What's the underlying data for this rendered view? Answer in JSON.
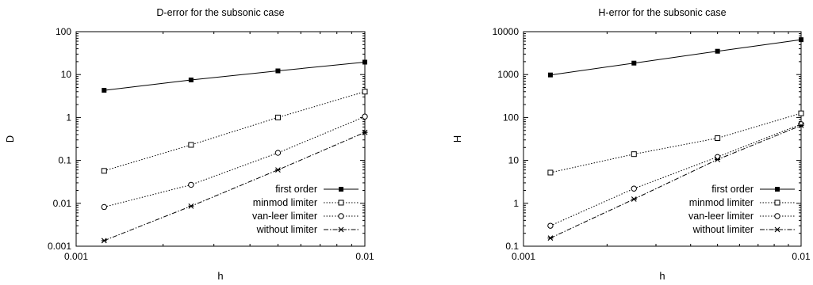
{
  "chart_data": [
    {
      "type": "line",
      "title": "D-error for the subsonic case",
      "xlabel": "h",
      "ylabel": "D",
      "xscale": "log",
      "yscale": "log",
      "xlim": [
        0.001,
        0.01
      ],
      "ylim": [
        0.001,
        100
      ],
      "xticks": [
        "0.001",
        "0.01"
      ],
      "yticks": [
        "0.001",
        "0.01",
        "0.1",
        "1",
        "10",
        "100"
      ],
      "grid": false,
      "legend": "bottom-right",
      "x": [
        0.00125,
        0.0025,
        0.005,
        0.01
      ],
      "series": [
        {
          "name": "first order",
          "marker": "filled-square",
          "dash": "solid",
          "values": [
            4.3,
            7.5,
            12.2,
            19.5
          ]
        },
        {
          "name": "minmod limiter",
          "marker": "open-square",
          "dash": "dotted",
          "values": [
            0.057,
            0.23,
            1.0,
            4.0
          ]
        },
        {
          "name": "van-leer limiter",
          "marker": "open-circle",
          "dash": "dotted",
          "values": [
            0.0082,
            0.027,
            0.15,
            1.05
          ]
        },
        {
          "name": "without limiter",
          "marker": "star",
          "dash": "dash-dot",
          "values": [
            0.00135,
            0.0086,
            0.06,
            0.45
          ]
        }
      ]
    },
    {
      "type": "line",
      "title": "H-error for the subsonic case",
      "xlabel": "h",
      "ylabel": "H",
      "xscale": "log",
      "yscale": "log",
      "xlim": [
        0.001,
        0.01
      ],
      "ylim": [
        0.1,
        10000
      ],
      "xticks": [
        "0.001",
        "0.01"
      ],
      "yticks": [
        "0.1",
        "1",
        "10",
        "100",
        "1000",
        "10000"
      ],
      "grid": false,
      "legend": "bottom-right",
      "x": [
        0.00125,
        0.0025,
        0.005,
        0.01
      ],
      "series": [
        {
          "name": "first order",
          "marker": "filled-square",
          "dash": "solid",
          "values": [
            980,
            1850,
            3500,
            6500
          ]
        },
        {
          "name": "minmod limiter",
          "marker": "open-square",
          "dash": "dotted",
          "values": [
            5.2,
            14,
            33,
            125
          ]
        },
        {
          "name": "van-leer limiter",
          "marker": "open-circle",
          "dash": "dotted",
          "values": [
            0.3,
            2.2,
            12,
            70
          ]
        },
        {
          "name": "without limiter",
          "marker": "star",
          "dash": "dash-dot",
          "values": [
            0.155,
            1.25,
            10.5,
            65
          ]
        }
      ]
    }
  ]
}
